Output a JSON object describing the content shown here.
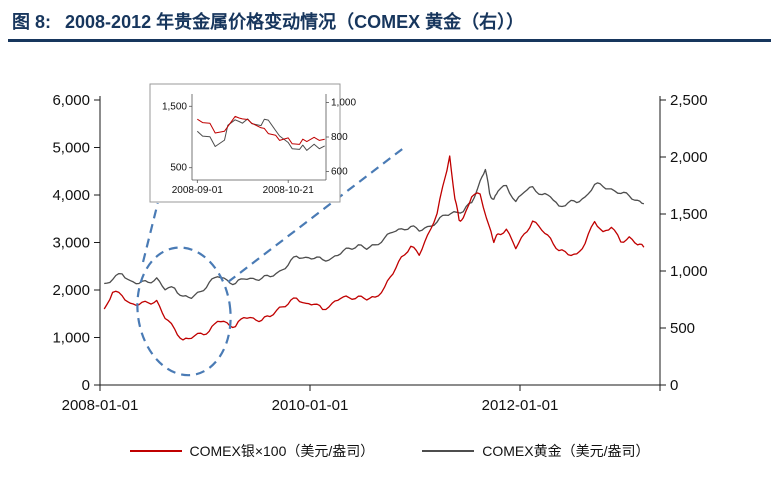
{
  "title_prefix": "图 8:",
  "title_text": "2008-2012 年贵金属价格变动情况（COMEX 黄金（右））",
  "colors": {
    "title": "#17365D",
    "axis": "#1a1a1a",
    "silver": "#C00000",
    "gold": "#4D4D4D",
    "annotation": "#4A7BB5",
    "inset_border": "#999999"
  },
  "chart_data": {
    "type": "line",
    "title": "2008-2012 年贵金属价格变动情况（COMEX 黄金（右））",
    "x_range": [
      2008.0,
      2013.3333
    ],
    "x_ticks": [
      {
        "t": 2008.0,
        "label": "2008-01-01"
      },
      {
        "t": 2010.0,
        "label": "2010-01-01"
      },
      {
        "t": 2012.0,
        "label": "2012-01-01"
      }
    ],
    "left_axis": {
      "range": [
        0,
        6000
      ],
      "ticks": [
        {
          "v": 0,
          "label": "0"
        },
        {
          "v": 1000,
          "label": "1,000"
        },
        {
          "v": 2000,
          "label": "2,000"
        },
        {
          "v": 3000,
          "label": "3,000"
        },
        {
          "v": 4000,
          "label": "4,000"
        },
        {
          "v": 5000,
          "label": "5,000"
        },
        {
          "v": 6000,
          "label": "6,000"
        }
      ]
    },
    "right_axis": {
      "range": [
        0,
        2500
      ],
      "ticks": [
        {
          "v": 0,
          "label": "0"
        },
        {
          "v": 500,
          "label": "500"
        },
        {
          "v": 1000,
          "label": "1,000"
        },
        {
          "v": 1500,
          "label": "1,500"
        },
        {
          "v": 2000,
          "label": "2,000"
        },
        {
          "v": 2500,
          "label": "2,500"
        }
      ]
    },
    "series": [
      {
        "id": "silver",
        "name": "COMEX银×100（美元/盎司）",
        "axis": "left",
        "color": "#C00000",
        "points": [
          [
            2008.04,
            1600
          ],
          [
            2008.12,
            1950
          ],
          [
            2008.21,
            1880
          ],
          [
            2008.29,
            1720
          ],
          [
            2008.37,
            1690
          ],
          [
            2008.46,
            1730
          ],
          [
            2008.54,
            1780
          ],
          [
            2008.62,
            1400
          ],
          [
            2008.71,
            1180
          ],
          [
            2008.79,
            950
          ],
          [
            2008.87,
            980
          ],
          [
            2008.96,
            1090
          ],
          [
            2009.04,
            1130
          ],
          [
            2009.12,
            1340
          ],
          [
            2009.21,
            1310
          ],
          [
            2009.29,
            1230
          ],
          [
            2009.37,
            1420
          ],
          [
            2009.46,
            1410
          ],
          [
            2009.54,
            1360
          ],
          [
            2009.62,
            1440
          ],
          [
            2009.71,
            1640
          ],
          [
            2009.79,
            1700
          ],
          [
            2009.87,
            1830
          ],
          [
            2009.96,
            1720
          ],
          [
            2010.04,
            1700
          ],
          [
            2010.12,
            1590
          ],
          [
            2010.21,
            1720
          ],
          [
            2010.29,
            1820
          ],
          [
            2010.37,
            1840
          ],
          [
            2010.46,
            1870
          ],
          [
            2010.54,
            1790
          ],
          [
            2010.62,
            1850
          ],
          [
            2010.71,
            2060
          ],
          [
            2010.79,
            2340
          ],
          [
            2010.87,
            2700
          ],
          [
            2010.96,
            2920
          ],
          [
            2011.04,
            2730
          ],
          [
            2011.12,
            3160
          ],
          [
            2011.21,
            3610
          ],
          [
            2011.29,
            4400
          ],
          [
            2011.33,
            4820
          ],
          [
            2011.38,
            3920
          ],
          [
            2011.42,
            3470
          ],
          [
            2011.46,
            3520
          ],
          [
            2011.54,
            3960
          ],
          [
            2011.62,
            4020
          ],
          [
            2011.71,
            3320
          ],
          [
            2011.75,
            3000
          ],
          [
            2011.79,
            3180
          ],
          [
            2011.87,
            3280
          ],
          [
            2011.96,
            2870
          ],
          [
            2012.04,
            3180
          ],
          [
            2012.12,
            3450
          ],
          [
            2012.21,
            3250
          ],
          [
            2012.29,
            3090
          ],
          [
            2012.37,
            2830
          ],
          [
            2012.46,
            2740
          ],
          [
            2012.54,
            2760
          ],
          [
            2012.62,
            2980
          ],
          [
            2012.71,
            3440
          ],
          [
            2012.79,
            3230
          ],
          [
            2012.87,
            3320
          ],
          [
            2012.96,
            3010
          ],
          [
            2013.04,
            3120
          ],
          [
            2013.12,
            2950
          ],
          [
            2013.18,
            2900
          ]
        ]
      },
      {
        "id": "gold",
        "name": "COMEX黄金（美元/盎司）",
        "axis": "right",
        "color": "#4D4D4D",
        "points": [
          [
            2008.04,
            890
          ],
          [
            2008.12,
            925
          ],
          [
            2008.21,
            975
          ],
          [
            2008.29,
            915
          ],
          [
            2008.37,
            890
          ],
          [
            2008.46,
            900
          ],
          [
            2008.54,
            940
          ],
          [
            2008.62,
            835
          ],
          [
            2008.71,
            850
          ],
          [
            2008.79,
            780
          ],
          [
            2008.87,
            760
          ],
          [
            2008.96,
            820
          ],
          [
            2009.04,
            900
          ],
          [
            2009.12,
            950
          ],
          [
            2009.21,
            920
          ],
          [
            2009.29,
            890
          ],
          [
            2009.37,
            930
          ],
          [
            2009.46,
            935
          ],
          [
            2009.54,
            935
          ],
          [
            2009.62,
            950
          ],
          [
            2009.71,
            1000
          ],
          [
            2009.79,
            1050
          ],
          [
            2009.87,
            1130
          ],
          [
            2009.96,
            1120
          ],
          [
            2010.04,
            1110
          ],
          [
            2010.12,
            1100
          ],
          [
            2010.21,
            1115
          ],
          [
            2010.29,
            1150
          ],
          [
            2010.37,
            1200
          ],
          [
            2010.46,
            1230
          ],
          [
            2010.54,
            1190
          ],
          [
            2010.62,
            1230
          ],
          [
            2010.71,
            1290
          ],
          [
            2010.79,
            1340
          ],
          [
            2010.87,
            1370
          ],
          [
            2010.96,
            1390
          ],
          [
            2011.04,
            1350
          ],
          [
            2011.12,
            1390
          ],
          [
            2011.21,
            1430
          ],
          [
            2011.29,
            1490
          ],
          [
            2011.37,
            1520
          ],
          [
            2011.46,
            1520
          ],
          [
            2011.54,
            1600
          ],
          [
            2011.62,
            1790
          ],
          [
            2011.67,
            1890
          ],
          [
            2011.71,
            1680
          ],
          [
            2011.75,
            1630
          ],
          [
            2011.79,
            1700
          ],
          [
            2011.87,
            1750
          ],
          [
            2011.96,
            1610
          ],
          [
            2012.04,
            1690
          ],
          [
            2012.12,
            1740
          ],
          [
            2012.21,
            1670
          ],
          [
            2012.29,
            1650
          ],
          [
            2012.37,
            1570
          ],
          [
            2012.46,
            1600
          ],
          [
            2012.54,
            1600
          ],
          [
            2012.62,
            1650
          ],
          [
            2012.71,
            1760
          ],
          [
            2012.79,
            1740
          ],
          [
            2012.87,
            1720
          ],
          [
            2012.96,
            1680
          ],
          [
            2013.04,
            1660
          ],
          [
            2013.12,
            1620
          ],
          [
            2013.18,
            1590
          ]
        ]
      }
    ],
    "annotations": {
      "ellipse": {
        "t": 2008.8,
        "t_radius": 0.44,
        "v": 1550,
        "v_radius": 1350
      },
      "callout_lines": [
        {
          "from": [
            2008.41,
            2590
          ],
          "to": [
            2008.55,
            3830
          ]
        },
        {
          "from": [
            2009.22,
            2170
          ],
          "to": [
            2010.88,
            4970
          ]
        }
      ]
    },
    "inset": {
      "x_range": [
        2008.66,
        2008.862
      ],
      "x_ticks": [
        {
          "t": 2008.668,
          "label": "2008-09-01"
        },
        {
          "t": 2008.805,
          "label": "2008-10-21"
        }
      ],
      "left_axis": {
        "range": [
          300,
          1700
        ],
        "ticks": [
          {
            "v": 500,
            "label": "500"
          },
          {
            "v": 1500,
            "label": "1,500"
          }
        ]
      },
      "right_axis": {
        "range": [
          550,
          1050
        ],
        "ticks": [
          {
            "v": 600,
            "label": "600"
          },
          {
            "v": 800,
            "label": "800"
          },
          {
            "v": 1000,
            "label": "1,000"
          }
        ]
      },
      "series": [
        {
          "id": "silver-inset",
          "axis": "left",
          "color": "#C00000",
          "points": [
            [
              2008.668,
              1290
            ],
            [
              2008.676,
              1235
            ],
            [
              2008.687,
              1225
            ],
            [
              2008.695,
              1065
            ],
            [
              2008.709,
              1095
            ],
            [
              2008.714,
              1170
            ],
            [
              2008.725,
              1335
            ],
            [
              2008.731,
              1310
            ],
            [
              2008.736,
              1295
            ],
            [
              2008.744,
              1285
            ],
            [
              2008.75,
              1225
            ],
            [
              2008.764,
              1150
            ],
            [
              2008.769,
              1140
            ],
            [
              2008.775,
              1055
            ],
            [
              2008.786,
              1030
            ],
            [
              2008.792,
              945
            ],
            [
              2008.805,
              985
            ],
            [
              2008.811,
              890
            ],
            [
              2008.822,
              880
            ],
            [
              2008.827,
              965
            ],
            [
              2008.833,
              925
            ],
            [
              2008.844,
              995
            ],
            [
              2008.852,
              945
            ],
            [
              2008.86,
              965
            ]
          ]
        },
        {
          "id": "gold-inset",
          "axis": "right",
          "color": "#4D4D4D",
          "points": [
            [
              2008.668,
              833
            ],
            [
              2008.676,
              805
            ],
            [
              2008.687,
              802
            ],
            [
              2008.695,
              745
            ],
            [
              2008.709,
              782
            ],
            [
              2008.714,
              868
            ],
            [
              2008.725,
              900
            ],
            [
              2008.731,
              890
            ],
            [
              2008.736,
              880
            ],
            [
              2008.744,
              905
            ],
            [
              2008.75,
              878
            ],
            [
              2008.764,
              866
            ],
            [
              2008.769,
              903
            ],
            [
              2008.775,
              898
            ],
            [
              2008.786,
              838
            ],
            [
              2008.792,
              806
            ],
            [
              2008.805,
              768
            ],
            [
              2008.811,
              732
            ],
            [
              2008.822,
              728
            ],
            [
              2008.827,
              753
            ],
            [
              2008.833,
              722
            ],
            [
              2008.844,
              758
            ],
            [
              2008.852,
              732
            ],
            [
              2008.86,
              748
            ]
          ]
        }
      ]
    },
    "legend": [
      {
        "id": "silver",
        "label": "COMEX银×100（美元/盎司）",
        "color": "#C00000"
      },
      {
        "id": "gold",
        "label": "COMEX黄金（美元/盎司）",
        "color": "#4D4D4D"
      }
    ]
  }
}
